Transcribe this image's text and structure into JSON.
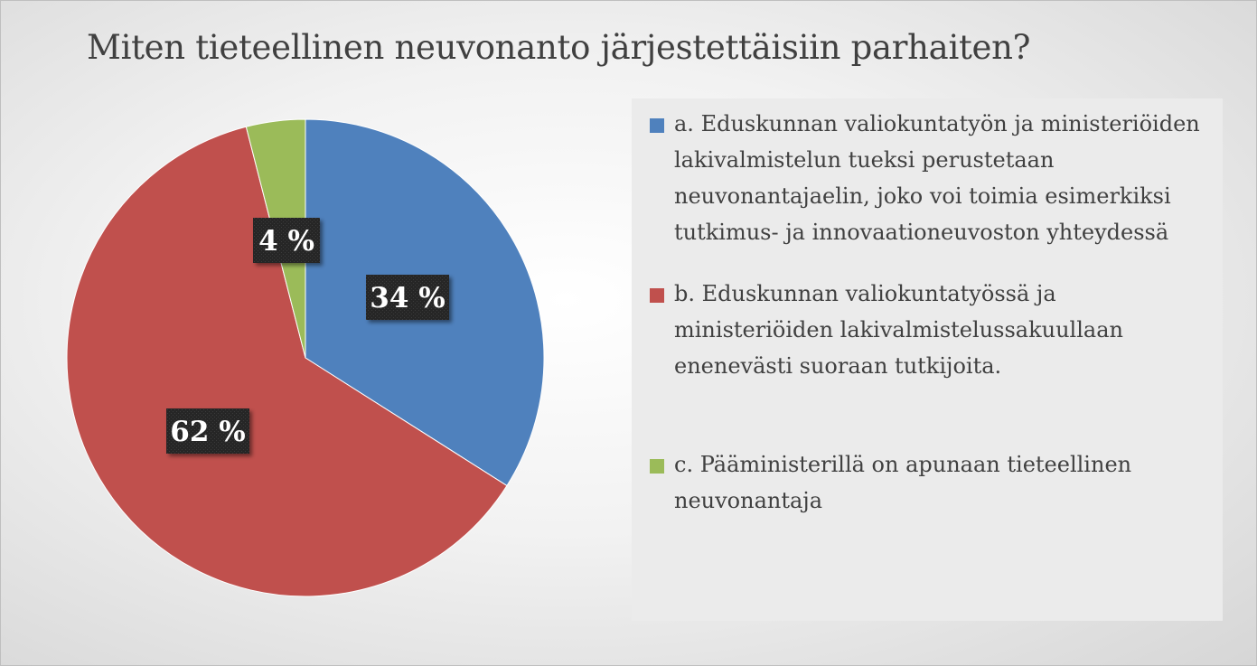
{
  "chart_data": {
    "type": "pie",
    "title": "Miten tieteellinen neuvonanto  järjestettäisiin parhaiten?",
    "categories": [
      "a. Eduskunnan valiokuntatyön ja ministeriöiden lakivalmistelun tueksi perustetaan neuvonantajaelin, joko voi toimia esimerkiksi tutkimus- ja innovaationeuvoston yhteydessä",
      "b. Eduskunnan valiokuntatyössä ja ministeriöiden lakivalmistelussakuullaan enenevästi suoraan tutkijoita.",
      "c. Pääministerillä on apunaan tieteellinen neuvonantaja"
    ],
    "values": [
      34,
      62,
      4
    ],
    "data_labels": [
      "34 %",
      "62 %",
      "4 %"
    ],
    "colors": [
      "#4f81bd",
      "#c0504d",
      "#9bbb59"
    ],
    "legend_position": "right"
  }
}
